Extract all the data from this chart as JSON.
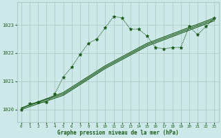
{
  "bg_color": "#cce8e8",
  "grid_color": "#b0c8c8",
  "line_color": "#1a5c1a",
  "xlabel": "Graphe pression niveau de la mer (hPa)",
  "xlabel_color": "#1a5c1a",
  "xlim": [
    -0.5,
    23.5
  ],
  "ylim": [
    1019.55,
    1023.8
  ],
  "yticks": [
    1020,
    1021,
    1022,
    1023
  ],
  "xticks": [
    0,
    1,
    2,
    3,
    4,
    5,
    6,
    7,
    8,
    9,
    10,
    11,
    12,
    13,
    14,
    15,
    16,
    17,
    18,
    19,
    20,
    21,
    22,
    23
  ],
  "series1_x": [
    0,
    1,
    2,
    3,
    4,
    5,
    6,
    7,
    8,
    9,
    10,
    11,
    12,
    13,
    14,
    15,
    16,
    17,
    18,
    19,
    20,
    21,
    22,
    23
  ],
  "series1_y": [
    1020.0,
    1020.2,
    1020.25,
    1020.25,
    1020.55,
    1021.15,
    1021.5,
    1021.95,
    1022.35,
    1022.5,
    1022.9,
    1023.3,
    1023.25,
    1022.85,
    1022.85,
    1022.6,
    1022.2,
    1022.15,
    1022.2,
    1022.2,
    1022.95,
    1022.65,
    1022.95,
    1023.25
  ],
  "series2_x": [
    0,
    5,
    10,
    15,
    23
  ],
  "series2_y": [
    1020.05,
    1020.6,
    1021.55,
    1022.35,
    1023.25
  ],
  "series3_x": [
    0,
    5,
    10,
    15,
    23
  ],
  "series3_y": [
    1020.05,
    1020.55,
    1021.5,
    1022.3,
    1023.2
  ],
  "series4_x": [
    0,
    5,
    10,
    15,
    23
  ],
  "series4_y": [
    1020.0,
    1020.5,
    1021.45,
    1022.25,
    1023.15
  ]
}
